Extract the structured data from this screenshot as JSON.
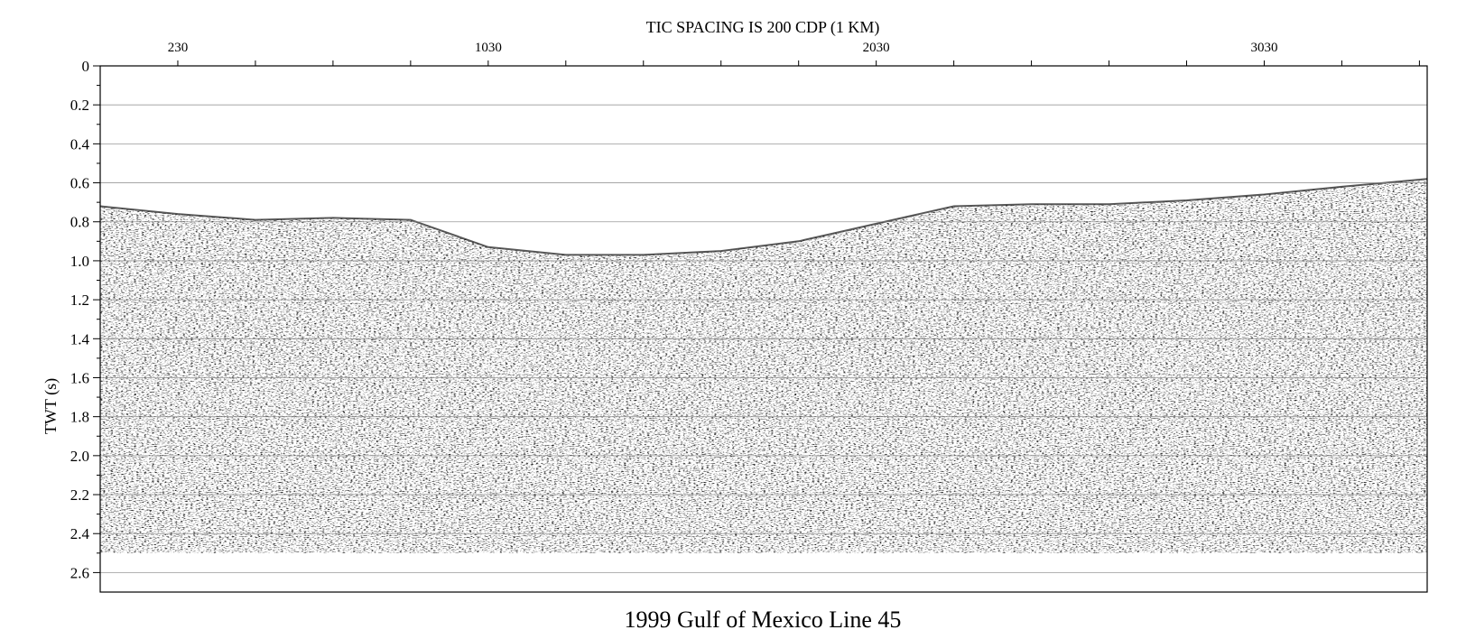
{
  "chart_data": {
    "type": "heatmap",
    "title": "1999 Gulf of Mexico Line 45",
    "top_axis_note": "TIC SPACING IS 200 CDP (1 KM)",
    "xlabel": "",
    "ylabel": "TWT (s)",
    "x_unit": "CDP",
    "x_labeled_ticks": [
      "230",
      "1030",
      "2030",
      "3030"
    ],
    "x_labeled_values": [
      230,
      1030,
      2030,
      3030
    ],
    "x_tick_spacing": 200,
    "xlim": [
      30,
      3450
    ],
    "y_ticks": [
      "0",
      "0.2",
      "0.4",
      "0.6",
      "0.8",
      "1.0",
      "1.2",
      "1.4",
      "1.6",
      "1.8",
      "2.0",
      "2.2",
      "2.4",
      "2.6"
    ],
    "y_tick_values": [
      0,
      0.2,
      0.4,
      0.6,
      0.8,
      1.0,
      1.2,
      1.4,
      1.6,
      1.8,
      2.0,
      2.2,
      2.4,
      2.6
    ],
    "ylim": [
      0,
      2.7
    ],
    "y_inverted": true,
    "grid": true,
    "seafloor_twt": {
      "cdp": [
        30,
        230,
        430,
        630,
        830,
        1030,
        1230,
        1430,
        1630,
        1830,
        2030,
        2230,
        2430,
        2630,
        2830,
        3030,
        3230,
        3450
      ],
      "twt": [
        0.72,
        0.76,
        0.79,
        0.78,
        0.79,
        0.93,
        0.97,
        0.97,
        0.95,
        0.9,
        0.81,
        0.72,
        0.71,
        0.71,
        0.69,
        0.66,
        0.62,
        0.58
      ]
    },
    "data_bottom_twt": 2.5,
    "colors": {
      "trace": "#000000",
      "background": "#ffffff",
      "grid": "#808080"
    }
  }
}
